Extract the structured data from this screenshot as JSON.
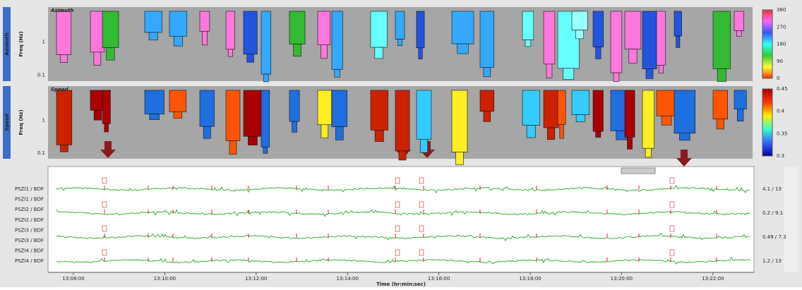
{
  "panels": [
    {
      "label": "Azimuth",
      "axis_label": "Freq (Hz)",
      "freq_ticks": [
        "1",
        "0.1"
      ],
      "colorbar_ticks": [
        "360",
        "270",
        "180",
        "90",
        "0"
      ]
    },
    {
      "label": "Speed",
      "axis_label": "Freq (Hz)",
      "freq_ticks": [
        "1",
        "0.1"
      ],
      "colorbar_ticks": [
        "0.45",
        "0.4",
        "0.35",
        "0.3"
      ]
    }
  ],
  "traces": {
    "labels": [
      "PSZI1 / BDF",
      "PSZI1 / BDF",
      "PSZI2 / BDF",
      "PSZI2 / BDF",
      "PSZI3 / BDF",
      "PSZI3 / BDF",
      "PSZI4 / BDF",
      "PSZI4 / BDF"
    ],
    "amplitudes": [
      "4.1 / 13",
      "0.2 / 9.1",
      "0.49 / 7.3",
      "1.2 / 13"
    ]
  },
  "time_axis": {
    "ticks": [
      "13:08:00",
      "13:10:00",
      "13:12:00",
      "13:14:00",
      "13:16:00",
      "13:18:00",
      "13:20:00",
      "13:22:00"
    ],
    "label": "Time (hr:min:sec)"
  }
}
